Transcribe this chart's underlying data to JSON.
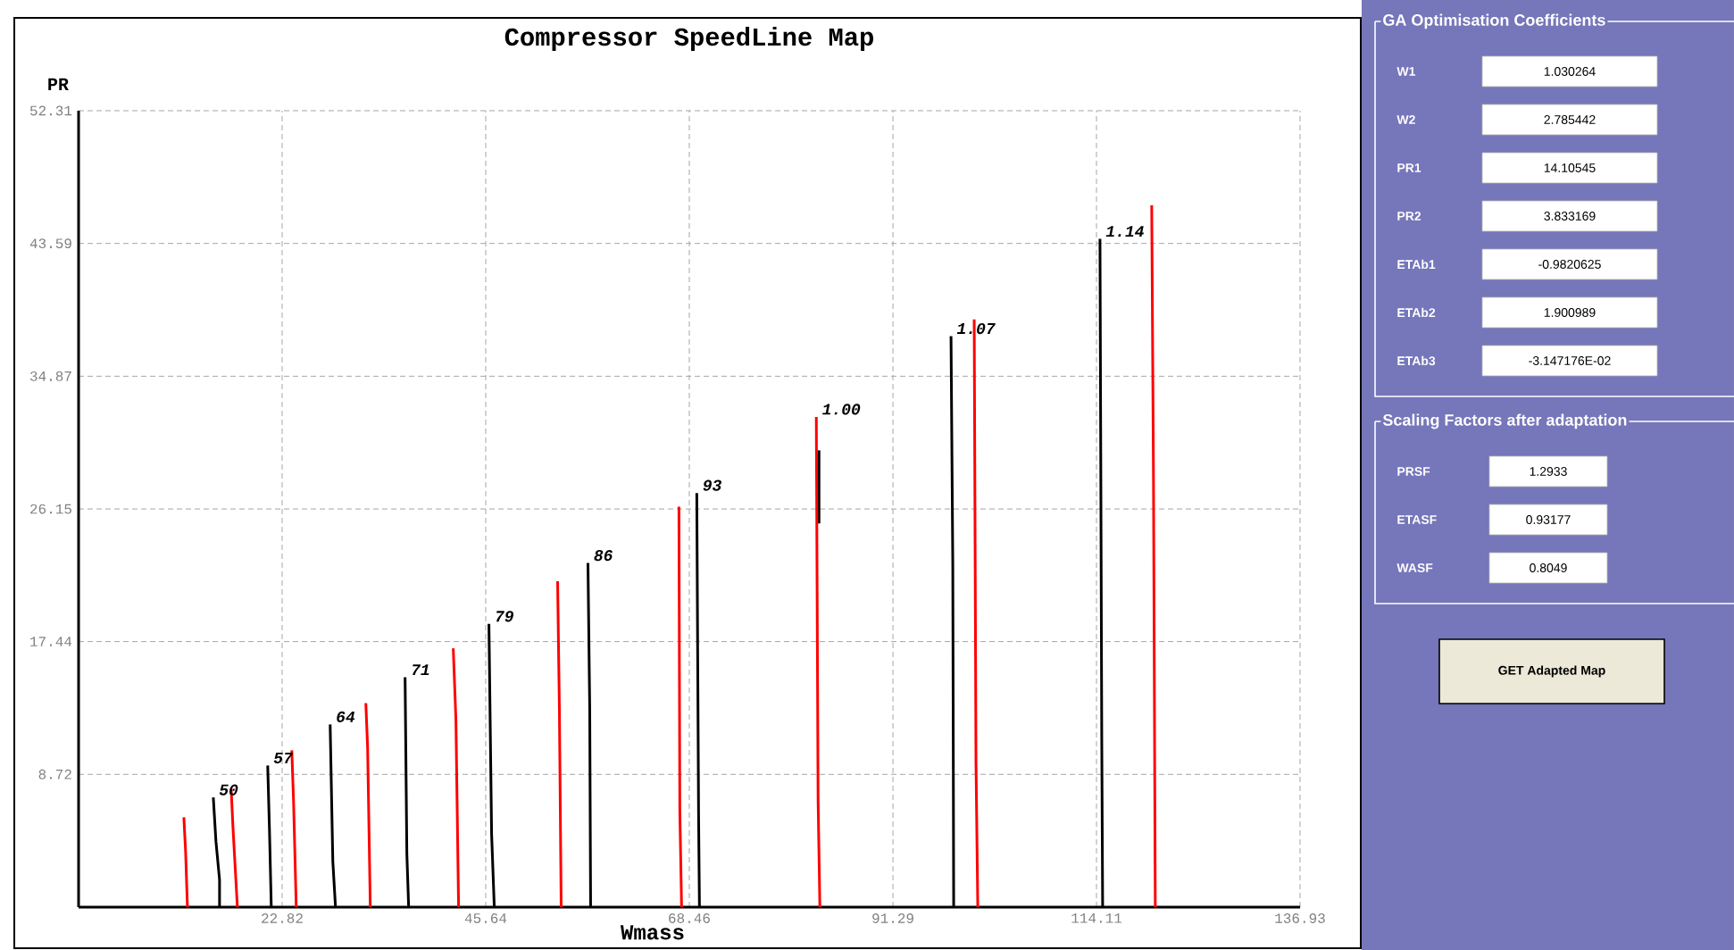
{
  "chart_data": [
    {
      "type": "line",
      "title": "Compressor SpeedLine Map",
      "xlabel": "Wmass",
      "ylabel": "PR",
      "xlim": [
        0,
        136.93
      ],
      "ylim": [
        0,
        52.31
      ],
      "xticks": [
        22.82,
        45.64,
        68.46,
        91.29,
        114.11,
        136.93
      ],
      "yticks": [
        8.72,
        17.44,
        26.15,
        34.87,
        43.59,
        52.31
      ],
      "grid": true,
      "marker": "none",
      "line_style": "solid",
      "series": [
        {
          "color": "#ff0000",
          "x": [
            11.8,
            12.0,
            12.2
          ],
          "values": [
            5.9,
            3.6,
            0
          ]
        },
        {
          "color": "#000000",
          "x": [
            15.1,
            15.4,
            15.8,
            15.8
          ],
          "values": [
            7.2,
            4.3,
            1.8,
            0
          ]
        },
        {
          "color": "#ff0000",
          "x": [
            17.1,
            17.3,
            17.8
          ],
          "values": [
            7.8,
            5.3,
            0
          ]
        },
        {
          "color": "#000000",
          "x": [
            21.2,
            21.4,
            21.6
          ],
          "values": [
            9.3,
            5.0,
            0
          ]
        },
        {
          "color": "#ff0000",
          "x": [
            23.9,
            24.1,
            24.4
          ],
          "values": [
            10.3,
            6.9,
            0
          ]
        },
        {
          "color": "#000000",
          "x": [
            28.2,
            28.5,
            28.8
          ],
          "values": [
            12.0,
            3.0,
            0
          ]
        },
        {
          "color": "#ff0000",
          "x": [
            32.2,
            32.4,
            32.7
          ],
          "values": [
            13.4,
            10.5,
            0
          ]
        },
        {
          "color": "#000000",
          "x": [
            36.6,
            36.8,
            37.0
          ],
          "values": [
            15.1,
            3.5,
            0
          ]
        },
        {
          "color": "#ff0000",
          "x": [
            42.0,
            42.3,
            42.6
          ],
          "values": [
            17.0,
            12.3,
            0
          ]
        },
        {
          "color": "#000000",
          "x": [
            46.0,
            46.3,
            46.6
          ],
          "values": [
            18.6,
            4.8,
            0
          ]
        },
        {
          "color": "#ff0000",
          "x": [
            53.7,
            53.9,
            54.1
          ],
          "values": [
            21.4,
            12.9,
            0
          ]
        },
        {
          "color": "#000000",
          "x": [
            57.1,
            57.3,
            57.4
          ],
          "values": [
            22.6,
            13.0,
            0
          ]
        },
        {
          "color": "#ff0000",
          "x": [
            67.3,
            67.4,
            67.6
          ],
          "values": [
            26.3,
            6.3,
            0
          ]
        },
        {
          "color": "#000000",
          "x": [
            69.3,
            69.5,
            69.6
          ],
          "values": [
            27.2,
            6.2,
            0
          ]
        },
        {
          "color": "#000000",
          "x": [
            83.0,
            83.0
          ],
          "values": [
            30.0,
            25.2
          ]
        },
        {
          "color": "#ff0000",
          "x": [
            82.7,
            82.9,
            83.1
          ],
          "values": [
            32.2,
            7.0,
            0
          ]
        },
        {
          "color": "#000000",
          "x": [
            97.8,
            98.0,
            98.1
          ],
          "values": [
            37.5,
            22.5,
            0
          ]
        },
        {
          "color": "#ff0000",
          "x": [
            100.4,
            100.6,
            100.8
          ],
          "values": [
            38.6,
            9.5,
            0
          ]
        },
        {
          "color": "#000000",
          "x": [
            114.5,
            114.7,
            114.8
          ],
          "values": [
            43.9,
            11.0,
            0
          ]
        },
        {
          "color": "#ff0000",
          "x": [
            120.3,
            120.5,
            120.7
          ],
          "values": [
            46.1,
            27.9,
            0
          ]
        }
      ],
      "annotations": [
        {
          "text": "50",
          "x": 15.1,
          "y": 7.2
        },
        {
          "text": "57",
          "x": 21.2,
          "y": 9.3
        },
        {
          "text": "64",
          "x": 28.2,
          "y": 12.0
        },
        {
          "text": "71",
          "x": 36.6,
          "y": 15.1
        },
        {
          "text": "79",
          "x": 46.0,
          "y": 18.6
        },
        {
          "text": "86",
          "x": 57.1,
          "y": 22.6
        },
        {
          "text": "93",
          "x": 69.3,
          "y": 27.2
        },
        {
          "text": "1.00",
          "x": 82.7,
          "y": 32.2
        },
        {
          "text": "1.07",
          "x": 97.8,
          "y": 37.5
        },
        {
          "text": "1.14",
          "x": 114.5,
          "y": 43.9
        }
      ]
    },
    {
      "type": "other",
      "title": "GA Optimisation Coefficients",
      "annotations": [
        "W1",
        "1.030264",
        "W2",
        "2.785442",
        "PR1",
        "14.10545",
        "PR2",
        "3.833169",
        "ETAb1",
        "-0.9820625",
        "ETAb2",
        "1.900989",
        "ETAb3",
        "-3.147176E-02"
      ]
    },
    {
      "type": "other",
      "title": "Scaling Factors after adaptation",
      "annotations": [
        "PRSF",
        "1.2933",
        "ETASF",
        "0.93177",
        "WASF",
        "0.8049"
      ]
    },
    {
      "type": "other",
      "annotations": [
        "GET Adapted Map"
      ]
    }
  ]
}
